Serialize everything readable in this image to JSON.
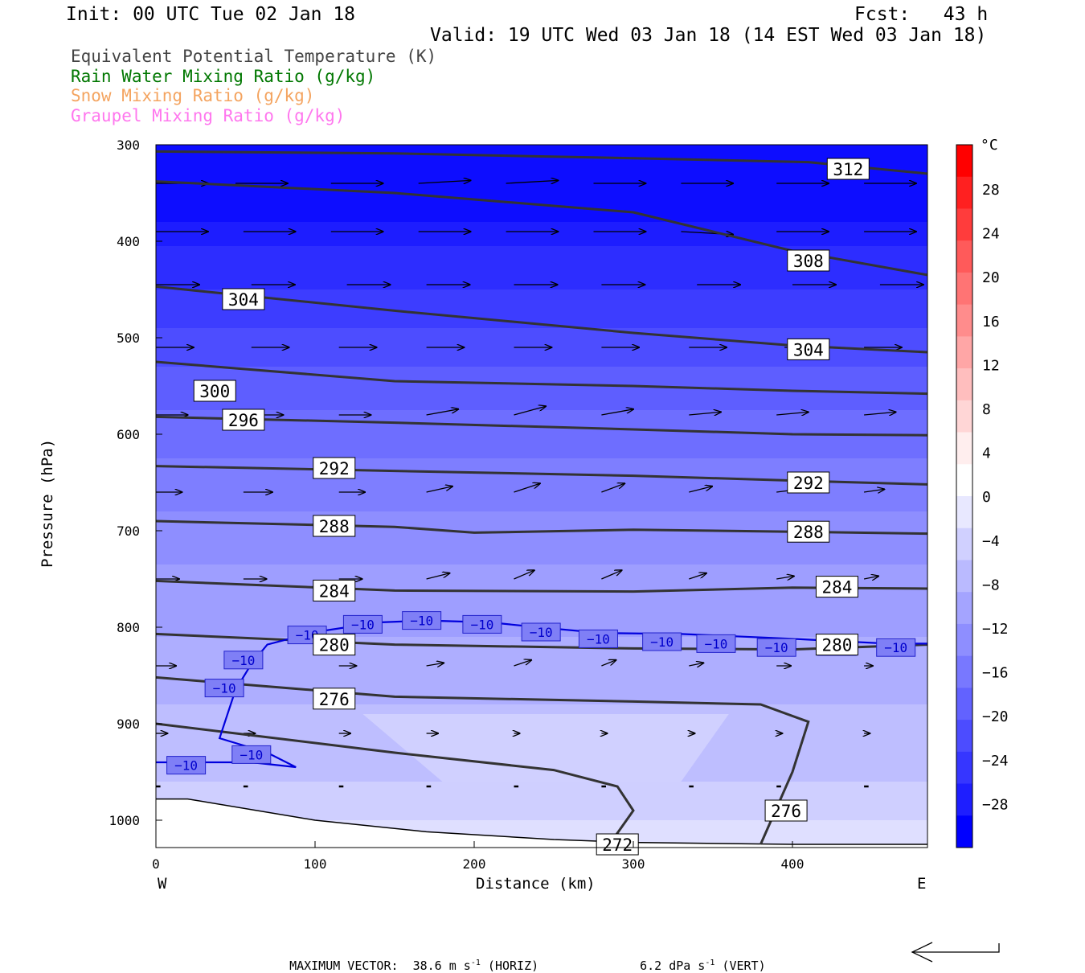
{
  "header": {
    "init": "Init: 00 UTC Tue 02 Jan 18",
    "fcst": "Fcst:   43 h",
    "valid": "Valid: 19 UTC Wed 03 Jan 18 (14 EST Wed 03 Jan 18)"
  },
  "legend": [
    {
      "label": "Equivalent Potential Temperature (K)",
      "color": "#444444"
    },
    {
      "label": "Rain Water Mixing Ratio (g/kg)",
      "color": "#007700"
    },
    {
      "label": "Snow Mixing Ratio (g/kg)",
      "color": "#f4a460"
    },
    {
      "label": "Graupel Mixing Ratio (g/kg)",
      "color": "#ff77ee"
    }
  ],
  "chart_data": {
    "type": "cross-section",
    "ylabel": "Pressure (hPa)",
    "xlabel": "Distance (km)",
    "x_left_label": "W",
    "x_right_label": "E",
    "x_ticks": [
      0,
      100,
      200,
      300,
      400
    ],
    "y_ticks": [
      300,
      400,
      500,
      600,
      700,
      800,
      900,
      1000
    ],
    "xlim": [
      0,
      485
    ],
    "ylim": [
      1030,
      300
    ],
    "y_scale": "linear (inverted)",
    "colorbar": {
      "unit": "°C",
      "ticks": [
        28,
        24,
        20,
        16,
        12,
        8,
        4,
        0,
        -4,
        -8,
        -12,
        -16,
        -20,
        -24,
        -28
      ],
      "colors": [
        "#ff0000",
        "#ff2020",
        "#ff3c3c",
        "#ff5a5a",
        "#ff7474",
        "#ff8c8c",
        "#ffa6a6",
        "#ffbebe",
        "#ffd6d6",
        "#ffeeee",
        "#ffffff",
        "#e8e8ff",
        "#d0d0ff",
        "#babaff",
        "#a4a4ff",
        "#8e8eff",
        "#7878ff",
        "#6262ff",
        "#4c4cff",
        "#3636ff",
        "#1e1eff",
        "#0000ff"
      ]
    },
    "temperature_shading": [
      {
        "temp": -30,
        "upper_p": 300
      },
      {
        "temp": -28,
        "upper_p": 380
      },
      {
        "temp": -26,
        "upper_p": 405
      },
      {
        "temp": -24,
        "upper_p": 450
      },
      {
        "temp": -22,
        "upper_p": 490
      },
      {
        "temp": -20,
        "upper_p": 530
      },
      {
        "temp": -18,
        "upper_p": 575
      },
      {
        "temp": -16,
        "upper_p": 625
      },
      {
        "temp": -14,
        "upper_p": 680
      },
      {
        "temp": -12,
        "upper_p": 735
      },
      {
        "temp": -10,
        "upper_p": 810
      },
      {
        "temp": -8,
        "upper_p": 880
      },
      {
        "temp": -6,
        "upper_p": 960
      },
      {
        "temp": -4,
        "upper_p": 1000
      }
    ],
    "theta_e_contours": [
      {
        "value": 312,
        "points": [
          [
            0,
            307
          ],
          [
            150,
            309
          ],
          [
            300,
            314
          ],
          [
            410,
            318
          ],
          [
            485,
            330
          ]
        ],
        "labels": [
          [
            435,
            325
          ]
        ]
      },
      {
        "value": 308,
        "points": [
          [
            0,
            338
          ],
          [
            150,
            350
          ],
          [
            300,
            370
          ],
          [
            400,
            410
          ],
          [
            485,
            435
          ]
        ],
        "labels": [
          [
            410,
            420
          ]
        ]
      },
      {
        "value": 304,
        "points": [
          [
            0,
            447
          ],
          [
            150,
            472
          ],
          [
            300,
            495
          ],
          [
            400,
            508
          ],
          [
            485,
            515
          ]
        ],
        "labels": [
          [
            55,
            460
          ],
          [
            410,
            512
          ]
        ]
      },
      {
        "value": 300,
        "points": [
          [
            0,
            525
          ],
          [
            150,
            545
          ],
          [
            300,
            550
          ],
          [
            400,
            555
          ],
          [
            485,
            558
          ]
        ],
        "labels": [
          [
            37,
            555
          ]
        ]
      },
      {
        "value": 296,
        "points": [
          [
            0,
            582
          ],
          [
            150,
            588
          ],
          [
            300,
            595
          ],
          [
            400,
            600
          ],
          [
            485,
            601
          ]
        ],
        "labels": [
          [
            55,
            585
          ]
        ]
      },
      {
        "value": 292,
        "points": [
          [
            0,
            633
          ],
          [
            150,
            638
          ],
          [
            300,
            643
          ],
          [
            400,
            648
          ],
          [
            485,
            652
          ]
        ],
        "labels": [
          [
            112,
            635
          ],
          [
            410,
            650
          ]
        ]
      },
      {
        "value": 288,
        "points": [
          [
            0,
            690
          ],
          [
            150,
            696
          ],
          [
            200,
            702
          ],
          [
            300,
            699
          ],
          [
            400,
            701
          ],
          [
            485,
            703
          ]
        ],
        "labels": [
          [
            112,
            695
          ],
          [
            410,
            701
          ]
        ]
      },
      {
        "value": 284,
        "points": [
          [
            0,
            752
          ],
          [
            150,
            762
          ],
          [
            300,
            763
          ],
          [
            400,
            759
          ],
          [
            485,
            760
          ]
        ],
        "labels": [
          [
            112,
            762
          ],
          [
            428,
            758
          ]
        ]
      },
      {
        "value": 280,
        "points": [
          [
            0,
            807
          ],
          [
            150,
            818
          ],
          [
            300,
            822
          ],
          [
            400,
            823
          ],
          [
            485,
            818
          ]
        ],
        "labels": [
          [
            112,
            818
          ],
          [
            428,
            818
          ]
        ]
      },
      {
        "value": 276,
        "points": [
          [
            0,
            852
          ],
          [
            150,
            872
          ],
          [
            300,
            877
          ],
          [
            380,
            880
          ],
          [
            410,
            898
          ],
          [
            400,
            950
          ],
          [
            380,
            1025
          ]
        ],
        "labels": [
          [
            112,
            874
          ],
          [
            396,
            990
          ]
        ]
      },
      {
        "value": 272,
        "points": [
          [
            0,
            900
          ],
          [
            150,
            930
          ],
          [
            250,
            948
          ],
          [
            290,
            965
          ],
          [
            300,
            990
          ],
          [
            285,
            1025
          ]
        ],
        "labels": [
          [
            290,
            1025
          ]
        ]
      }
    ],
    "temperature_contours": [
      {
        "value": -10,
        "points": [
          [
            0,
            940
          ],
          [
            60,
            940
          ],
          [
            88,
            945
          ],
          [
            70,
            930
          ],
          [
            40,
            915
          ],
          [
            50,
            865
          ],
          [
            60,
            838
          ],
          [
            70,
            818
          ],
          [
            100,
            805
          ],
          [
            140,
            795
          ],
          [
            170,
            793
          ],
          [
            210,
            795
          ],
          [
            240,
            800
          ],
          [
            280,
            806
          ],
          [
            330,
            807
          ],
          [
            400,
            812
          ],
          [
            460,
            817
          ],
          [
            485,
            817
          ]
        ],
        "labels": [
          [
            19,
            943
          ],
          [
            60,
            932
          ],
          [
            43,
            863
          ],
          [
            55,
            834
          ],
          [
            95,
            808
          ],
          [
            130,
            797
          ],
          [
            167,
            793
          ],
          [
            205,
            797
          ],
          [
            242,
            805
          ],
          [
            278,
            812
          ],
          [
            318,
            815
          ],
          [
            352,
            817
          ],
          [
            390,
            821
          ],
          [
            428,
            820
          ],
          [
            465,
            821
          ]
        ]
      }
    ],
    "wind_vectors": {
      "pressures": [
        340,
        390,
        445,
        510,
        580,
        660,
        750,
        840,
        910,
        965
      ],
      "rows": [
        [
          [
            0,
            18,
            0
          ],
          [
            50,
            18,
            0
          ],
          [
            110,
            18,
            0
          ],
          [
            165,
            18,
            1
          ],
          [
            220,
            18,
            1
          ],
          [
            275,
            18,
            0
          ],
          [
            330,
            18,
            0
          ],
          [
            390,
            18,
            0
          ],
          [
            445,
            18,
            0
          ]
        ],
        [
          [
            0,
            18,
            0
          ],
          [
            55,
            18,
            0
          ],
          [
            110,
            18,
            0
          ],
          [
            165,
            18,
            0
          ],
          [
            220,
            18,
            0
          ],
          [
            275,
            18,
            0
          ],
          [
            330,
            18,
            -1
          ],
          [
            390,
            18,
            0
          ],
          [
            445,
            18,
            0
          ]
        ],
        [
          [
            0,
            15,
            0
          ],
          [
            60,
            15,
            0
          ],
          [
            120,
            15,
            0
          ],
          [
            170,
            15,
            0
          ],
          [
            225,
            15,
            0
          ],
          [
            280,
            15,
            0
          ],
          [
            340,
            15,
            0
          ],
          [
            400,
            15,
            0
          ],
          [
            455,
            15,
            0
          ]
        ],
        [
          [
            0,
            13,
            0
          ],
          [
            60,
            13,
            0
          ],
          [
            115,
            13,
            0
          ],
          [
            170,
            13,
            0
          ],
          [
            225,
            13,
            0
          ],
          [
            280,
            13,
            0
          ],
          [
            335,
            13,
            0
          ],
          [
            395,
            13,
            0
          ],
          [
            445,
            13,
            0
          ]
        ],
        [
          [
            0,
            11,
            0
          ],
          [
            60,
            11,
            0
          ],
          [
            115,
            11,
            0
          ],
          [
            170,
            11,
            2
          ],
          [
            225,
            11,
            3
          ],
          [
            280,
            11,
            2
          ],
          [
            335,
            11,
            1
          ],
          [
            390,
            11,
            1
          ],
          [
            445,
            11,
            1
          ]
        ],
        [
          [
            0,
            9,
            0
          ],
          [
            55,
            10,
            0
          ],
          [
            115,
            9,
            0
          ],
          [
            170,
            9,
            2
          ],
          [
            225,
            9,
            3
          ],
          [
            280,
            8,
            3
          ],
          [
            335,
            8,
            2
          ],
          [
            390,
            8,
            1
          ],
          [
            445,
            7,
            1
          ]
        ],
        [
          [
            0,
            8,
            0
          ],
          [
            55,
            8,
            0
          ],
          [
            115,
            8,
            0
          ],
          [
            170,
            8,
            2
          ],
          [
            225,
            7,
            3
          ],
          [
            280,
            7,
            3
          ],
          [
            335,
            6,
            2
          ],
          [
            390,
            6,
            1
          ],
          [
            445,
            5,
            1
          ]
        ],
        [
          [
            0,
            7,
            0
          ],
          [
            55,
            6,
            0
          ],
          [
            115,
            6,
            0
          ],
          [
            170,
            6,
            1
          ],
          [
            225,
            6,
            2
          ],
          [
            280,
            5,
            2
          ],
          [
            335,
            5,
            1
          ],
          [
            390,
            5,
            0
          ],
          [
            445,
            3,
            0
          ]
        ],
        [
          [
            0,
            4,
            0
          ],
          [
            55,
            4,
            0
          ],
          [
            115,
            4,
            0
          ],
          [
            170,
            4,
            0
          ],
          [
            225,
            2,
            0
          ],
          [
            280,
            2,
            0
          ],
          [
            335,
            2,
            0
          ],
          [
            390,
            2,
            0
          ],
          [
            445,
            2,
            0
          ]
        ],
        [
          [
            0,
            1,
            0
          ],
          [
            55,
            1,
            0
          ],
          [
            115,
            1,
            0
          ],
          [
            170,
            1,
            0
          ],
          [
            225,
            1,
            0
          ],
          [
            280,
            1,
            0
          ],
          [
            335,
            1,
            0
          ],
          [
            390,
            1,
            0
          ],
          [
            445,
            1,
            0
          ]
        ]
      ]
    },
    "terrain_top_p": [
      [
        0,
        978
      ],
      [
        20,
        978
      ],
      [
        100,
        1000
      ],
      [
        170,
        1012
      ],
      [
        250,
        1020
      ],
      [
        300,
        1023
      ],
      [
        400,
        1025
      ],
      [
        485,
        1025
      ]
    ],
    "max_vector": {
      "label": "MAXIMUM VECTOR:",
      "horiz_value": "38.6",
      "horiz_units": "m s",
      "horiz_exp": "-1",
      "horiz_tag": "(HORIZ)",
      "vert_value": "6.2",
      "vert_units": "dPa s",
      "vert_exp": "-1",
      "vert_tag": "(VERT)"
    }
  }
}
